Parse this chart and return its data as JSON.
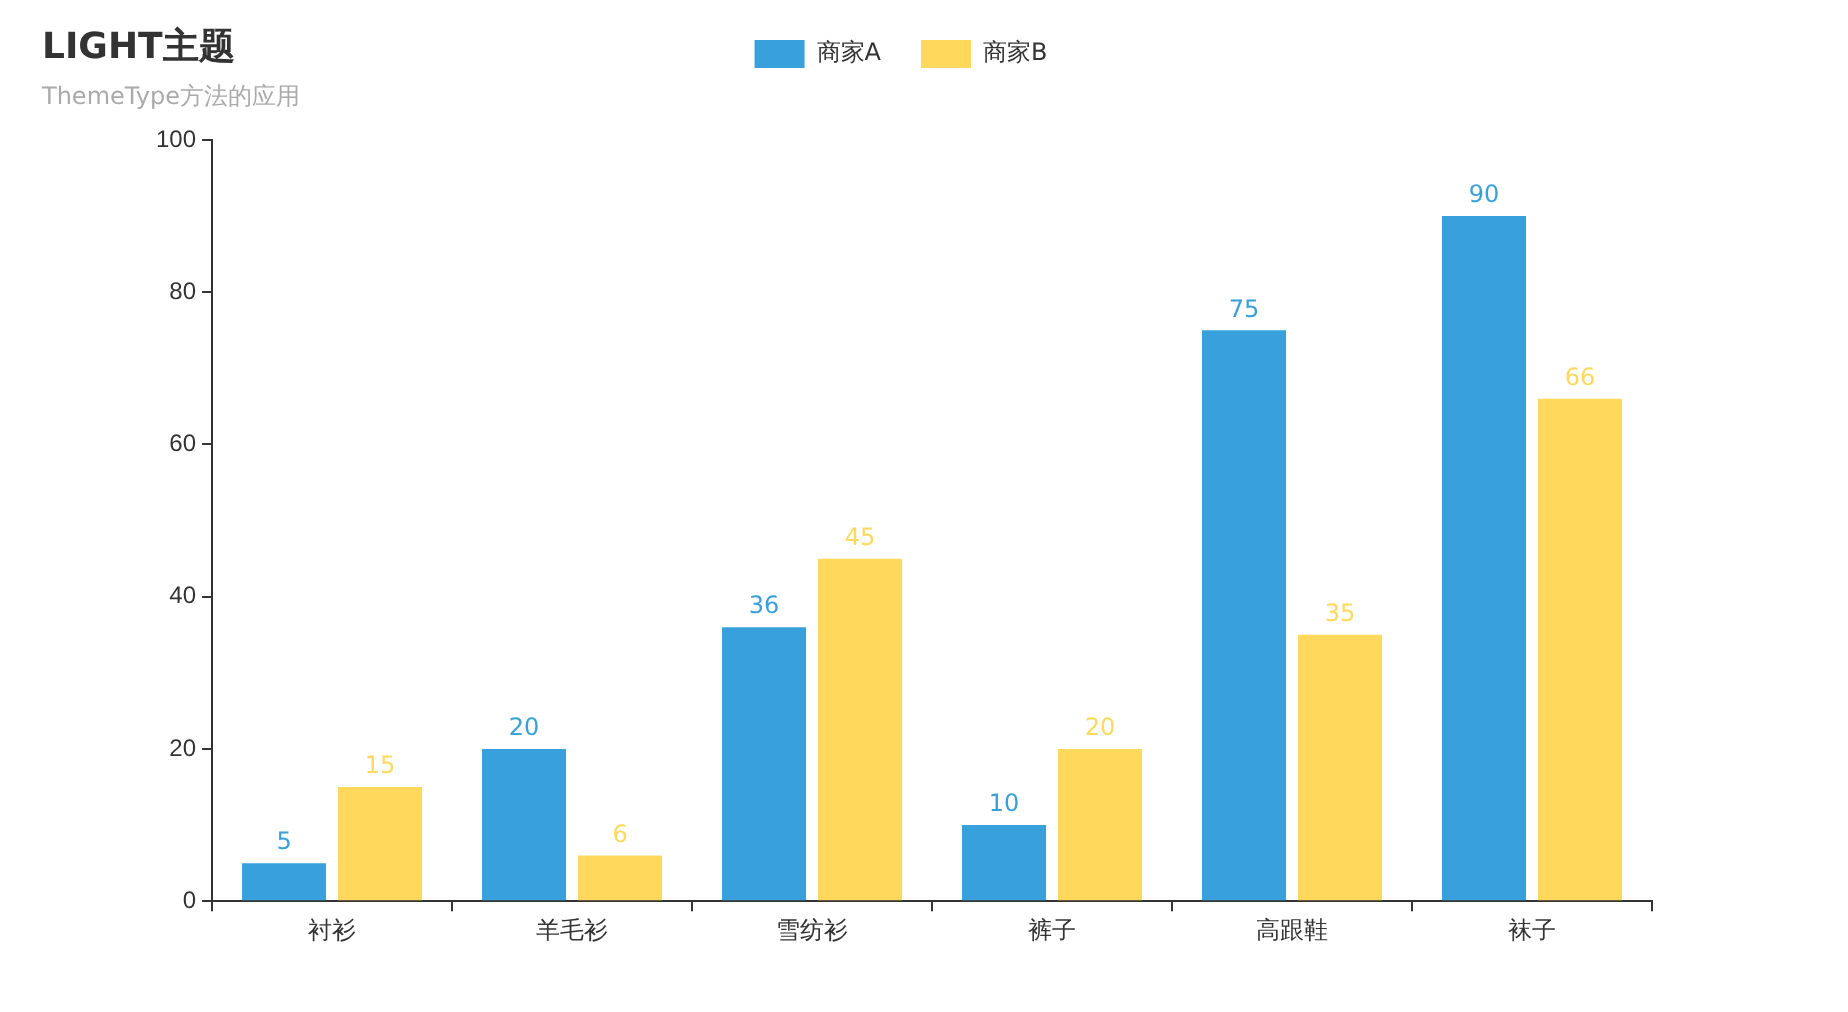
{
  "chart_data": {
    "type": "bar",
    "title": "LIGHT主题",
    "subtitle": "ThemeType方法的应用",
    "categories": [
      "衬衫",
      "羊毛衫",
      "雪纺衫",
      "裤子",
      "高跟鞋",
      "袜子"
    ],
    "series": [
      {
        "name": "商家A",
        "color": "#38a1db",
        "values": [
          5,
          20,
          36,
          10,
          75,
          90
        ]
      },
      {
        "name": "商家B",
        "color": "#ffd85c",
        "values": [
          15,
          6,
          45,
          20,
          35,
          66
        ]
      }
    ],
    "ylim": [
      0,
      100
    ],
    "yticks": [
      0,
      20,
      40,
      60,
      80,
      100
    ],
    "grid": false,
    "legend": "top",
    "data_labels": true
  }
}
